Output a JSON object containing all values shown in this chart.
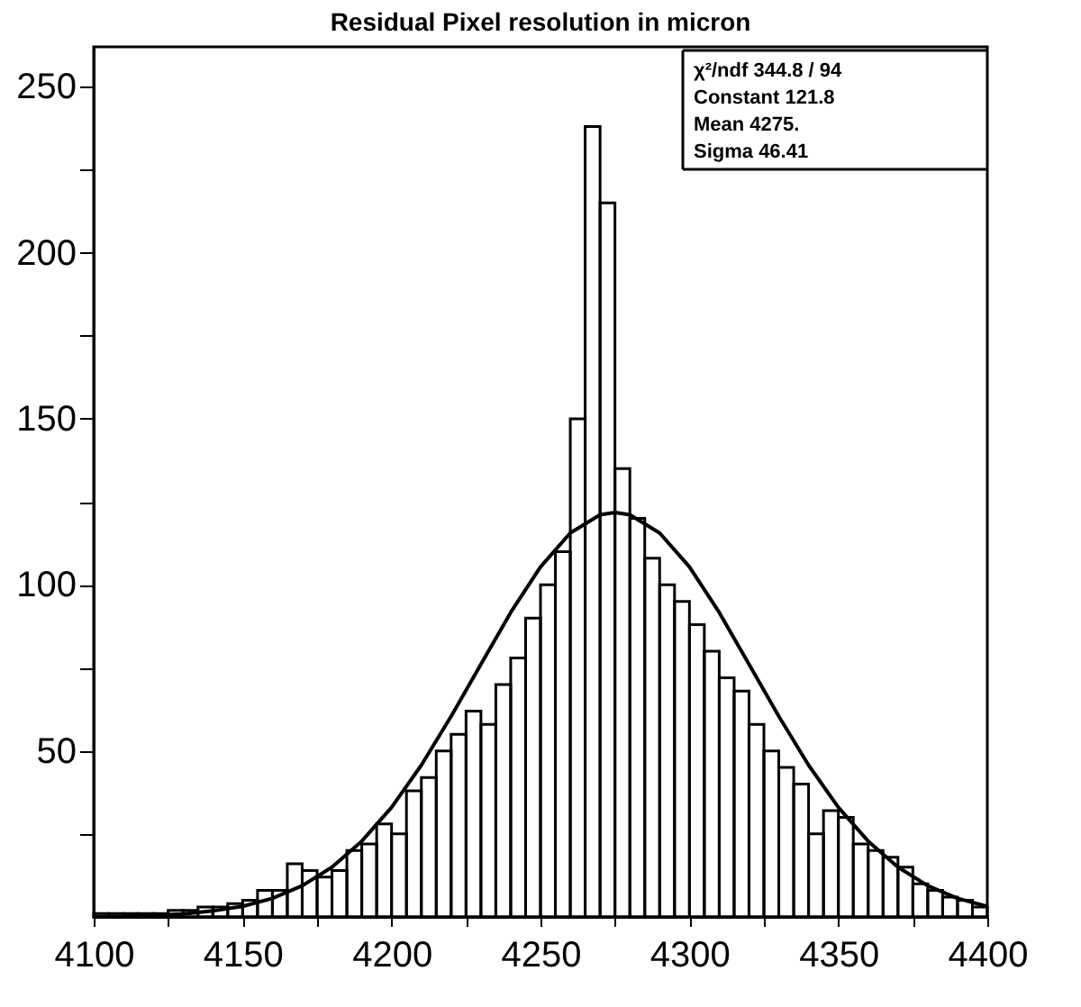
{
  "chart_data": {
    "type": "histogram",
    "title": "Residual Pixel resolution in micron",
    "bins": [
      4100,
      4105,
      4110,
      4115,
      4120,
      4125,
      4130,
      4135,
      4140,
      4145,
      4150,
      4155,
      4160,
      4165,
      4170,
      4175,
      4180,
      4185,
      4190,
      4195,
      4200,
      4205,
      4210,
      4215,
      4220,
      4225,
      4230,
      4235,
      4240,
      4245,
      4250,
      4255,
      4260,
      4265,
      4270,
      4275,
      4280,
      4285,
      4290,
      4295,
      4300,
      4305,
      4310,
      4315,
      4320,
      4325,
      4330,
      4335,
      4340,
      4345,
      4350,
      4355,
      4360,
      4365,
      4370,
      4375,
      4380,
      4385,
      4390,
      4395,
      4400
    ],
    "values": [
      1,
      1,
      1,
      1,
      1,
      2,
      2,
      3,
      3,
      4,
      5,
      8,
      8,
      16,
      14,
      12,
      14,
      20,
      22,
      28,
      25,
      38,
      42,
      50,
      55,
      62,
      58,
      70,
      78,
      90,
      100,
      110,
      150,
      238,
      215,
      135,
      120,
      108,
      100,
      95,
      88,
      80,
      72,
      68,
      58,
      50,
      45,
      40,
      25,
      32,
      30,
      22,
      20,
      18,
      15,
      10,
      8,
      6,
      5,
      3
    ],
    "color": "#000000",
    "series": [
      {
        "type": "line",
        "color": "#000000",
        "x": [
          4100,
          4110,
          4120,
          4130,
          4140,
          4150,
          4160,
          4170,
          4180,
          4190,
          4200,
          4210,
          4220,
          4230,
          4240,
          4250,
          4260,
          4270,
          4275,
          4280,
          4290,
          4300,
          4310,
          4320,
          4330,
          4340,
          4350,
          4360,
          4370,
          4380,
          4390,
          4400
        ],
        "values": [
          0.1,
          0.2,
          0.5,
          0.9,
          1.8,
          3.2,
          5.6,
          9.4,
          15.0,
          22.8,
          33.0,
          45.7,
          60.4,
          76.1,
          91.7,
          105.4,
          115.6,
          121.1,
          121.8,
          121.1,
          115.6,
          105.4,
          91.7,
          76.1,
          60.4,
          45.7,
          33.0,
          22.8,
          15.0,
          9.4,
          5.6,
          3.2
        ]
      }
    ],
    "xlim": [
      4100,
      4400
    ],
    "ylim": [
      0,
      262
    ],
    "xticks": [
      4100,
      {
        "value": 4125,
        "label": null
      },
      4150,
      {
        "value": 4175,
        "label": null
      },
      4200,
      {
        "value": 4225,
        "label": null
      },
      4250,
      {
        "value": 4275,
        "label": null
      },
      4300,
      {
        "value": 4325,
        "label": null
      },
      4350,
      {
        "value": 4375,
        "label": null
      },
      4400
    ],
    "yticks": [
      {
        "value": 25,
        "label": null
      },
      50,
      {
        "value": 75,
        "label": null
      },
      100,
      {
        "value": 125,
        "label": null
      },
      150,
      {
        "value": 175,
        "label": null
      },
      200,
      {
        "value": 225,
        "label": null
      },
      250
    ],
    "grid": false,
    "annotations": [
      "χ²/ndf 344.8 / 94",
      "Constant 121.8",
      "Mean 4275.",
      "Sigma 46.41"
    ]
  }
}
